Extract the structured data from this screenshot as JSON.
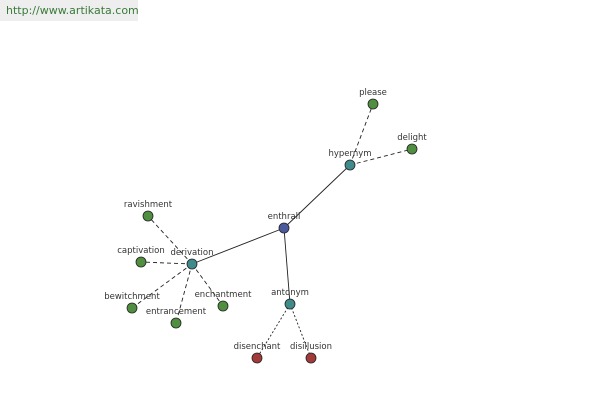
{
  "header": {
    "url": "http://www.artikata.com"
  },
  "nodes": [
    {
      "label": "enthrall"
    },
    {
      "label": "hypernym"
    },
    {
      "label": "please"
    },
    {
      "label": "delight"
    },
    {
      "label": "derivation"
    },
    {
      "label": "ravishment"
    },
    {
      "label": "captivation"
    },
    {
      "label": "bewitchment"
    },
    {
      "label": "entrancement"
    },
    {
      "label": "enchantment"
    },
    {
      "label": "antonym"
    },
    {
      "label": "disenchant"
    },
    {
      "label": "disillusion"
    }
  ]
}
